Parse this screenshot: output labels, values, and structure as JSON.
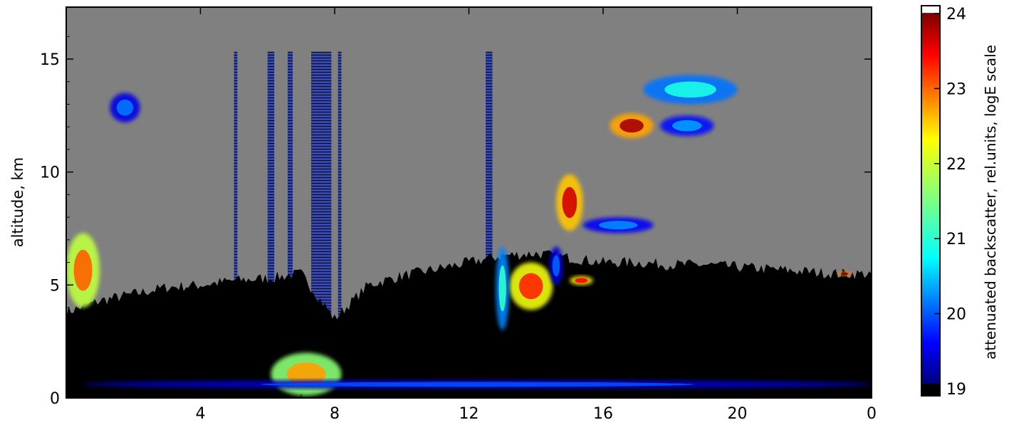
{
  "chart_data": {
    "type": "heatmap",
    "title": "",
    "xlabel": "",
    "ylabel": "altitude, km",
    "x_ticks": [
      "4",
      "8",
      "12",
      "16",
      "20",
      "0"
    ],
    "x_tick_hours": [
      4,
      8,
      12,
      16,
      20,
      24
    ],
    "xlim": [
      0,
      24
    ],
    "y_ticks": [
      0,
      5,
      10,
      15
    ],
    "ylim": [
      0,
      17.3
    ],
    "colorbar": {
      "label": "attenuated backscatter, rel.units, logE scale",
      "ticks": [
        19,
        20,
        21,
        22,
        23,
        24
      ],
      "range": [
        19,
        24
      ],
      "colormap": "jet",
      "over_color": "#ffffff",
      "under_color": "#000000"
    },
    "background_color": "#808080",
    "noise_color": "#000000",
    "noise_top_km": [
      [
        0,
        3.8
      ],
      [
        1,
        4.3
      ],
      [
        2,
        4.6
      ],
      [
        3,
        4.9
      ],
      [
        4,
        5.0
      ],
      [
        5,
        5.2
      ],
      [
        6,
        5.3
      ],
      [
        7,
        5.5
      ],
      [
        8,
        3.5
      ],
      [
        9,
        5.0
      ],
      [
        10,
        5.4
      ],
      [
        11,
        5.7
      ],
      [
        12,
        6.0
      ],
      [
        13,
        6.3
      ],
      [
        14,
        6.4
      ],
      [
        15,
        6.2
      ],
      [
        16,
        6.0
      ],
      [
        17,
        6.0
      ],
      [
        18,
        5.9
      ],
      [
        19,
        5.9
      ],
      [
        20,
        5.8
      ],
      [
        21,
        5.7
      ],
      [
        22,
        5.6
      ],
      [
        23,
        5.5
      ],
      [
        24,
        5.5
      ]
    ],
    "missing_data_columns_hours": [
      [
        5.0,
        5.1
      ],
      [
        6.0,
        6.2
      ],
      [
        6.6,
        6.75
      ],
      [
        7.3,
        7.9
      ],
      [
        8.1,
        8.2
      ],
      [
        12.5,
        12.7
      ]
    ],
    "cloud_layers": [
      {
        "x0": 1.3,
        "x1": 2.2,
        "alt0": 12.2,
        "alt1": 13.5,
        "value": 19.6
      },
      {
        "x0": 0.0,
        "x1": 1.0,
        "alt0": 4.0,
        "alt1": 7.3,
        "value": 22.3
      },
      {
        "x0": 14.6,
        "x1": 15.4,
        "alt0": 7.4,
        "alt1": 9.9,
        "value": 23.0
      },
      {
        "x0": 15.4,
        "x1": 17.5,
        "alt0": 7.3,
        "alt1": 8.0,
        "value": 19.7
      },
      {
        "x0": 16.2,
        "x1": 17.5,
        "alt0": 11.5,
        "alt1": 12.6,
        "value": 23.2
      },
      {
        "x0": 17.7,
        "x1": 19.3,
        "alt0": 11.6,
        "alt1": 12.5,
        "value": 19.8
      },
      {
        "x0": 17.2,
        "x1": 20.0,
        "alt0": 13.0,
        "alt1": 14.3,
        "value": 20.4
      },
      {
        "x0": 13.2,
        "x1": 14.5,
        "alt0": 3.9,
        "alt1": 6.0,
        "value": 22.6
      },
      {
        "x0": 12.8,
        "x1": 13.2,
        "alt0": 3.0,
        "alt1": 6.7,
        "value": 20.5
      },
      {
        "x0": 6.1,
        "x1": 8.2,
        "alt0": 0.1,
        "alt1": 2.0,
        "value": 22.0
      },
      {
        "x0": 14.4,
        "x1": 14.8,
        "alt0": 5.0,
        "alt1": 6.7,
        "value": 19.5
      },
      {
        "x0": 15.0,
        "x1": 15.7,
        "alt0": 5.0,
        "alt1": 5.4,
        "value": 22.8
      },
      {
        "x0": 23.0,
        "x1": 23.4,
        "alt0": 5.4,
        "alt1": 5.6,
        "value": 23.4
      },
      {
        "x0": 0.5,
        "x1": 24.0,
        "alt0": 0.4,
        "alt1": 0.8,
        "value": 19.4
      }
    ]
  }
}
